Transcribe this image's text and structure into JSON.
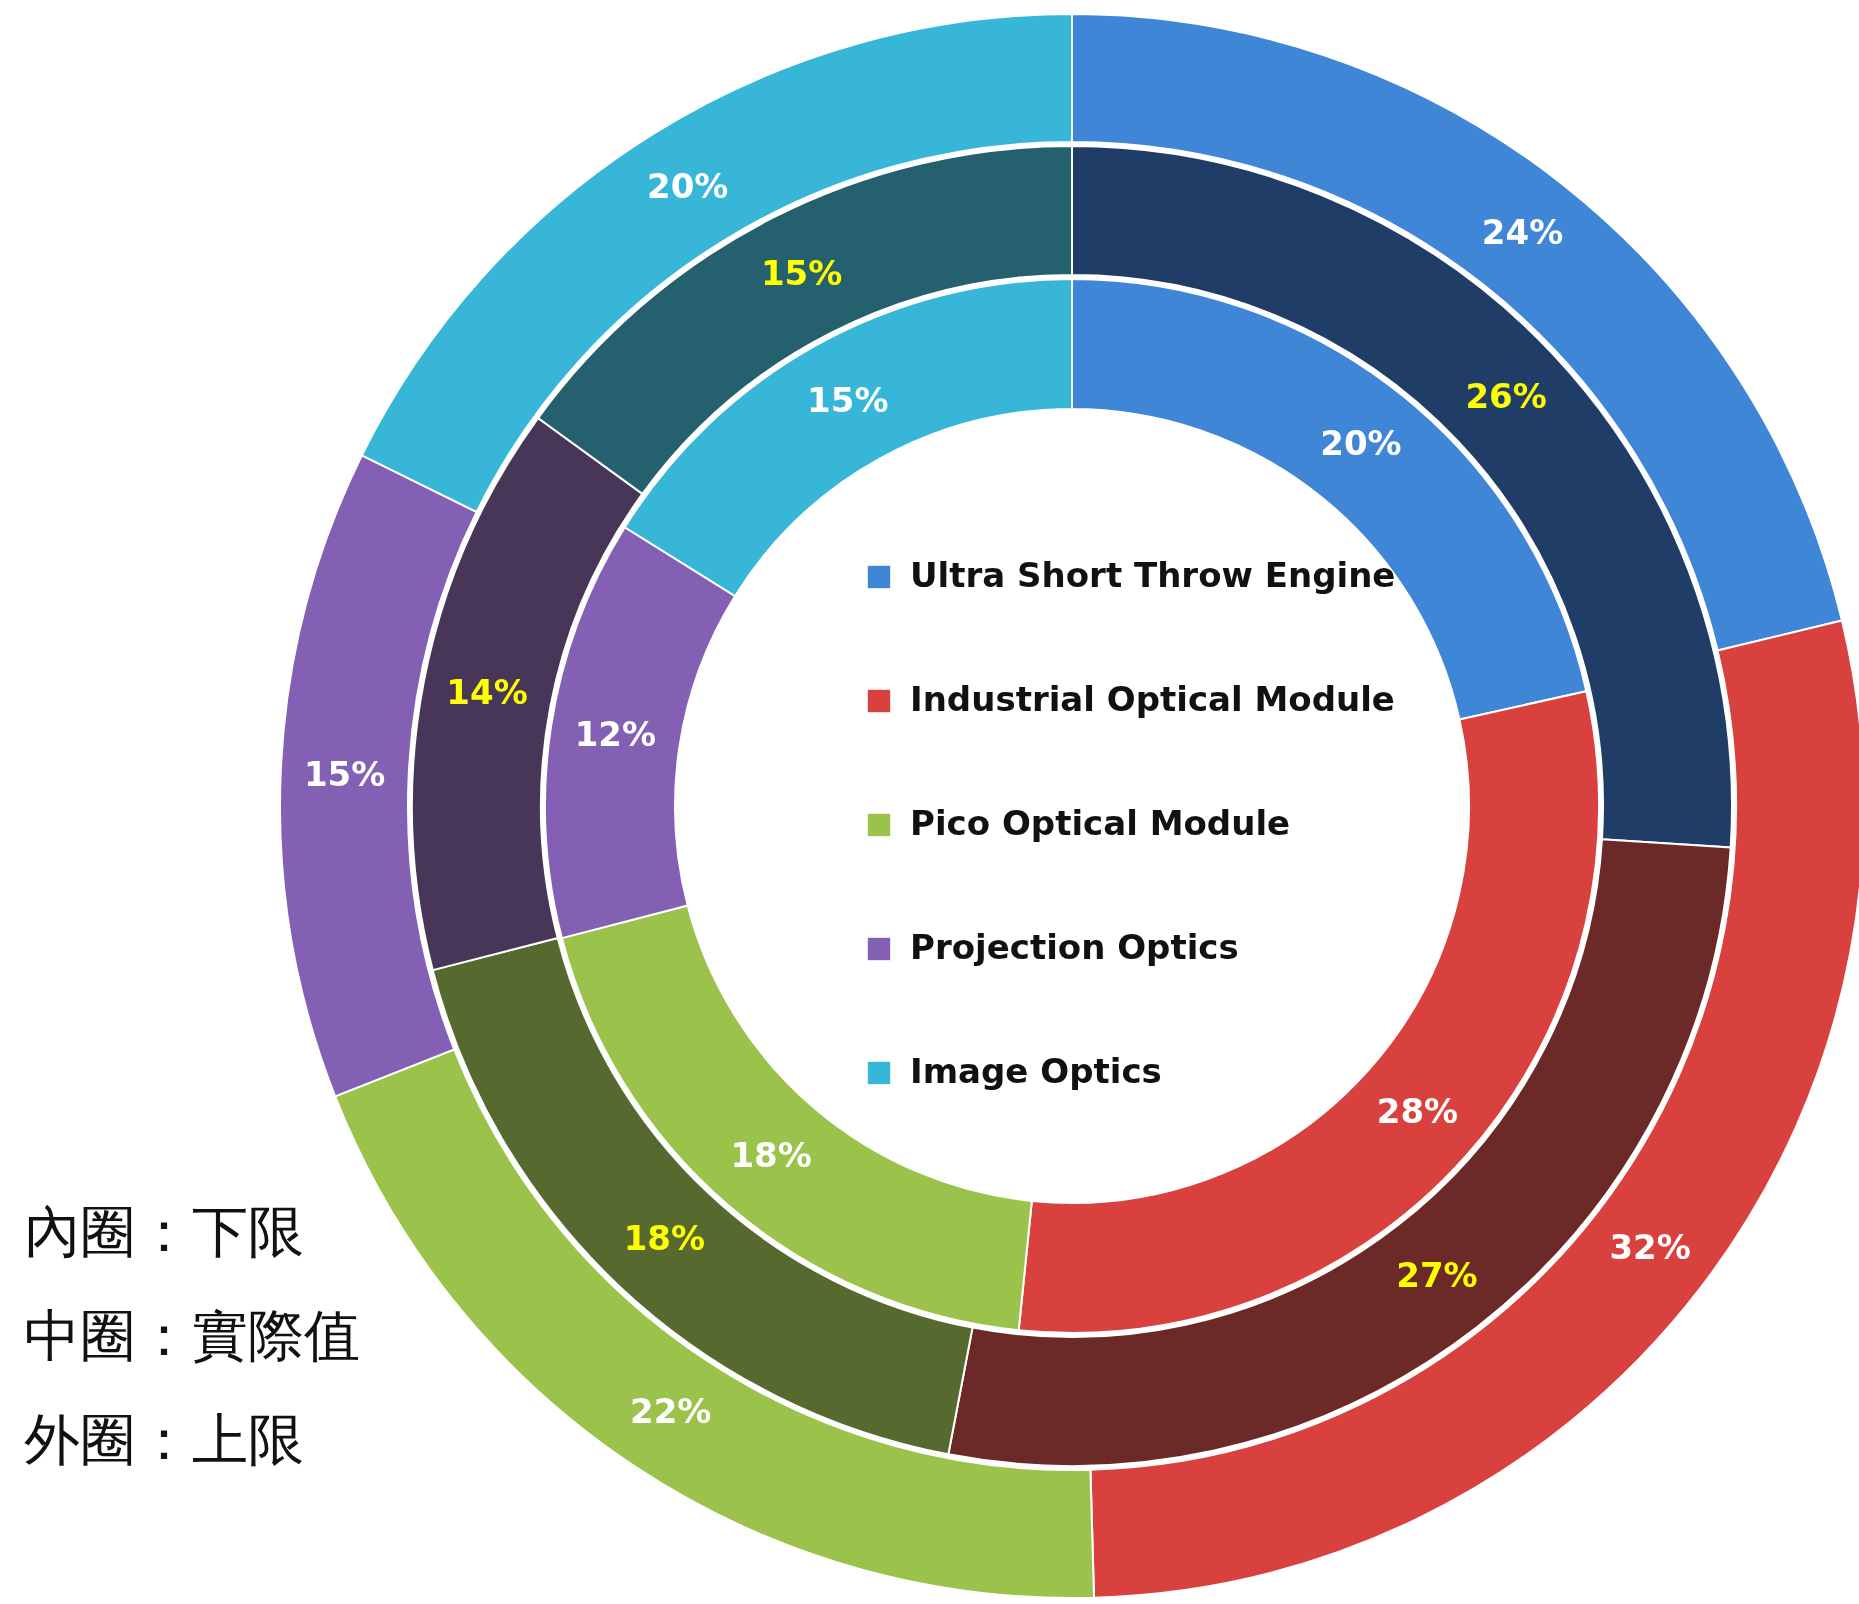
{
  "chart_data": {
    "type": "donut",
    "categories": [
      "Ultra Short Throw Engine",
      "Industrial Optical Module",
      "Pico Optical Module",
      "Projection Optics",
      "Image Optics"
    ],
    "series": [
      {
        "colors": [
          "#3f86d6",
          "#d8413d",
          "#9bc34b",
          "#8460b4",
          "#37b6d8"
        ],
        "values": [
          24,
          32,
          22,
          15,
          20
        ],
        "value_labels": [
          "24%",
          "32%",
          "22%",
          "15%",
          "20%"
        ]
      },
      {
        "colors": [
          "#1f3d66",
          "#6b2a28",
          "#56692f",
          "#483658",
          "#25606f"
        ],
        "values": [
          26,
          27,
          18,
          14,
          15
        ],
        "value_labels": [
          "26%",
          "27%",
          "18%",
          "14%",
          "15%"
        ]
      },
      {
        "colors": [
          "#3f86d6",
          "#d8413d",
          "#9bc34b",
          "#8460b4",
          "#37b6d8"
        ],
        "values": [
          20,
          28,
          18,
          12,
          15
        ],
        "value_labels": [
          "20%",
          "28%",
          "18%",
          "12%",
          "15%"
        ]
      }
    ],
    "legend": "center",
    "annotations": [
      "內圈：下限",
      "中圈：實際值",
      "外圈：上限"
    ]
  }
}
